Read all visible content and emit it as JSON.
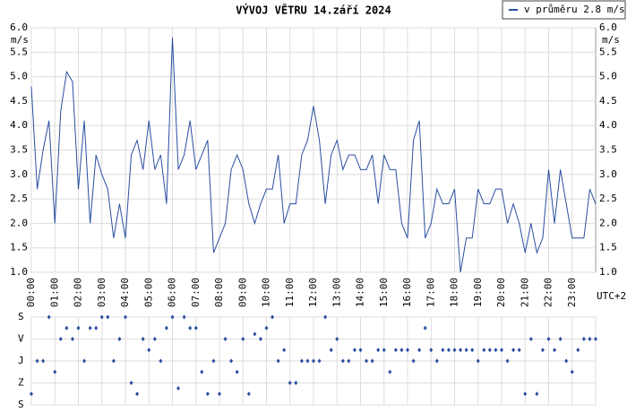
{
  "chart_data": [
    {
      "type": "line",
      "title": "VÝVOJ VĚTRU  14.září 2024",
      "ylabel": "m/s",
      "xlabel": "UTC+2",
      "x": [
        0,
        0.25,
        0.5,
        0.75,
        1,
        1.25,
        1.5,
        1.75,
        2,
        2.25,
        2.5,
        2.75,
        3,
        3.25,
        3.5,
        3.75,
        4,
        4.25,
        4.5,
        4.75,
        5,
        5.25,
        5.5,
        5.75,
        6,
        6.25,
        6.5,
        6.75,
        7,
        7.25,
        7.5,
        7.75,
        8,
        8.25,
        8.5,
        8.75,
        9,
        9.25,
        9.5,
        9.75,
        10,
        10.25,
        10.5,
        10.75,
        11,
        11.25,
        11.5,
        11.75,
        12,
        12.25,
        12.5,
        12.75,
        13,
        13.25,
        13.5,
        13.75,
        14,
        14.25,
        14.5,
        14.75,
        15,
        15.25,
        15.5,
        15.75,
        16,
        16.25,
        16.5,
        16.75,
        17,
        17.25,
        17.5,
        17.75,
        18,
        18.25,
        18.5,
        18.75,
        19,
        19.25,
        19.5,
        19.75,
        20,
        20.25,
        20.5,
        20.75,
        21,
        21.25,
        21.5,
        21.75,
        22,
        22.25,
        22.5,
        22.75,
        23,
        23.25,
        23.5,
        23.75,
        24
      ],
      "series": [
        {
          "name": "v průměru 2.8 m/s",
          "color": "#2a4ea0",
          "values": [
            4.8,
            2.7,
            3.5,
            4.1,
            2.0,
            4.3,
            5.1,
            4.9,
            2.7,
            4.1,
            2.0,
            3.4,
            3.0,
            2.7,
            1.7,
            2.4,
            1.7,
            3.4,
            3.7,
            3.1,
            4.1,
            3.1,
            3.4,
            2.4,
            5.8,
            3.1,
            3.4,
            4.1,
            3.1,
            3.4,
            3.7,
            1.4,
            1.7,
            2.0,
            3.1,
            3.4,
            3.1,
            2.4,
            2.0,
            2.4,
            2.7,
            2.7,
            3.4,
            2.0,
            2.4,
            2.4,
            3.4,
            3.7,
            4.4,
            3.7,
            2.4,
            3.4,
            3.7,
            3.1,
            3.4,
            3.4,
            3.1,
            3.1,
            3.4,
            2.4,
            3.4,
            3.1,
            3.1,
            2.0,
            1.7,
            3.7,
            4.1,
            1.7,
            2.0,
            2.7,
            2.4,
            2.4,
            2.7,
            1.0,
            1.7,
            1.7,
            2.7,
            2.4,
            2.4,
            2.7,
            2.7,
            2.0,
            2.4,
            2.0,
            1.4,
            2.0,
            1.4,
            1.7,
            3.1,
            2.0,
            3.1,
            2.4,
            1.7,
            1.7,
            1.7,
            2.7,
            2.4
          ]
        }
      ],
      "xlim": [
        0,
        24
      ],
      "xticks": [
        {
          "value": 0,
          "label": "00:00"
        },
        {
          "value": 1,
          "label": "01:00"
        },
        {
          "value": 2,
          "label": "02:00"
        },
        {
          "value": 3,
          "label": "03:00"
        },
        {
          "value": 4,
          "label": "04:00"
        },
        {
          "value": 5,
          "label": "05:00"
        },
        {
          "value": 6,
          "label": "06:00"
        },
        {
          "value": 7,
          "label": "07:00"
        },
        {
          "value": 8,
          "label": "08:00"
        },
        {
          "value": 9,
          "label": "09:00"
        },
        {
          "value": 10,
          "label": "10:00"
        },
        {
          "value": 11,
          "label": "11:00"
        },
        {
          "value": 12,
          "label": "12:00"
        },
        {
          "value": 13,
          "label": "13:00"
        },
        {
          "value": 14,
          "label": "14:00"
        },
        {
          "value": 15,
          "label": "15:00"
        },
        {
          "value": 16,
          "label": "16:00"
        },
        {
          "value": 17,
          "label": "17:00"
        },
        {
          "value": 18,
          "label": "18:00"
        },
        {
          "value": 19,
          "label": "19:00"
        },
        {
          "value": 20,
          "label": "20:00"
        },
        {
          "value": 21,
          "label": "21:00"
        },
        {
          "value": 22,
          "label": "22:00"
        },
        {
          "value": 23,
          "label": "23:00"
        }
      ],
      "ylim": [
        1,
        6
      ],
      "yticks": [
        {
          "value": 1,
          "label": "1.0"
        },
        1.5,
        {
          "value": 2,
          "label": "2.0"
        },
        2.5,
        {
          "value": 3,
          "label": "3.0"
        },
        3.5,
        {
          "value": 4,
          "label": "4.0"
        },
        4.5,
        {
          "value": 5,
          "label": "5.0"
        },
        5.5,
        {
          "value": 6,
          "label": "6.0"
        }
      ],
      "grid": true,
      "legend": "top-right"
    },
    {
      "type": "scatter",
      "color": "#2a4ea0",
      "x": [
        0,
        0.25,
        0.5,
        0.75,
        1,
        1.25,
        1.5,
        1.75,
        2,
        2.25,
        2.5,
        2.75,
        3,
        3.25,
        3.5,
        3.75,
        4,
        4.25,
        4.5,
        4.75,
        5,
        5.25,
        5.5,
        5.75,
        6,
        6.25,
        6.5,
        6.75,
        7,
        7.25,
        7.5,
        7.75,
        8,
        8.25,
        8.5,
        8.75,
        9,
        9.25,
        9.5,
        9.75,
        10,
        10.25,
        10.5,
        10.75,
        11,
        11.25,
        11.5,
        11.75,
        12,
        12.25,
        12.5,
        12.75,
        13,
        13.25,
        13.5,
        13.75,
        14,
        14.25,
        14.5,
        14.75,
        15,
        15.25,
        15.5,
        15.75,
        16,
        16.25,
        16.5,
        16.75,
        17,
        17.25,
        17.5,
        17.75,
        18,
        18.25,
        18.5,
        18.75,
        19,
        19.25,
        19.5,
        19.75,
        20,
        20.25,
        20.5,
        20.75,
        21,
        21.25,
        21.5,
        21.75,
        22,
        22.25,
        22.5,
        22.75,
        23,
        23.25,
        23.5,
        23.75,
        24
      ],
      "values": [
        315,
        180,
        180,
        0,
        225,
        90,
        45,
        90,
        45,
        180,
        45,
        45,
        0,
        0,
        180,
        90,
        0,
        270,
        315,
        90,
        135,
        90,
        180,
        45,
        0,
        292,
        0,
        45,
        45,
        225,
        315,
        180,
        315,
        90,
        180,
        225,
        90,
        315,
        70,
        90,
        45,
        0,
        180,
        135,
        270,
        270,
        180,
        180,
        180,
        180,
        0,
        135,
        90,
        180,
        180,
        135,
        135,
        180,
        180,
        135,
        135,
        225,
        135,
        135,
        135,
        180,
        135,
        45,
        135,
        180,
        135,
        135,
        135,
        135,
        135,
        135,
        180,
        135,
        135,
        135,
        135,
        180,
        135,
        135,
        315,
        90,
        315,
        135,
        90,
        135,
        90,
        180,
        225,
        135,
        90,
        90,
        90
      ],
      "xlim": [
        0,
        24
      ],
      "ylim": [
        0,
        360
      ],
      "yticks": [
        {
          "value": 0,
          "label": "S"
        },
        {
          "value": 90,
          "label": "V"
        },
        {
          "value": 180,
          "label": "J"
        },
        {
          "value": 270,
          "label": "Z"
        },
        {
          "value": 360,
          "label": "S"
        }
      ],
      "grid": true
    }
  ]
}
